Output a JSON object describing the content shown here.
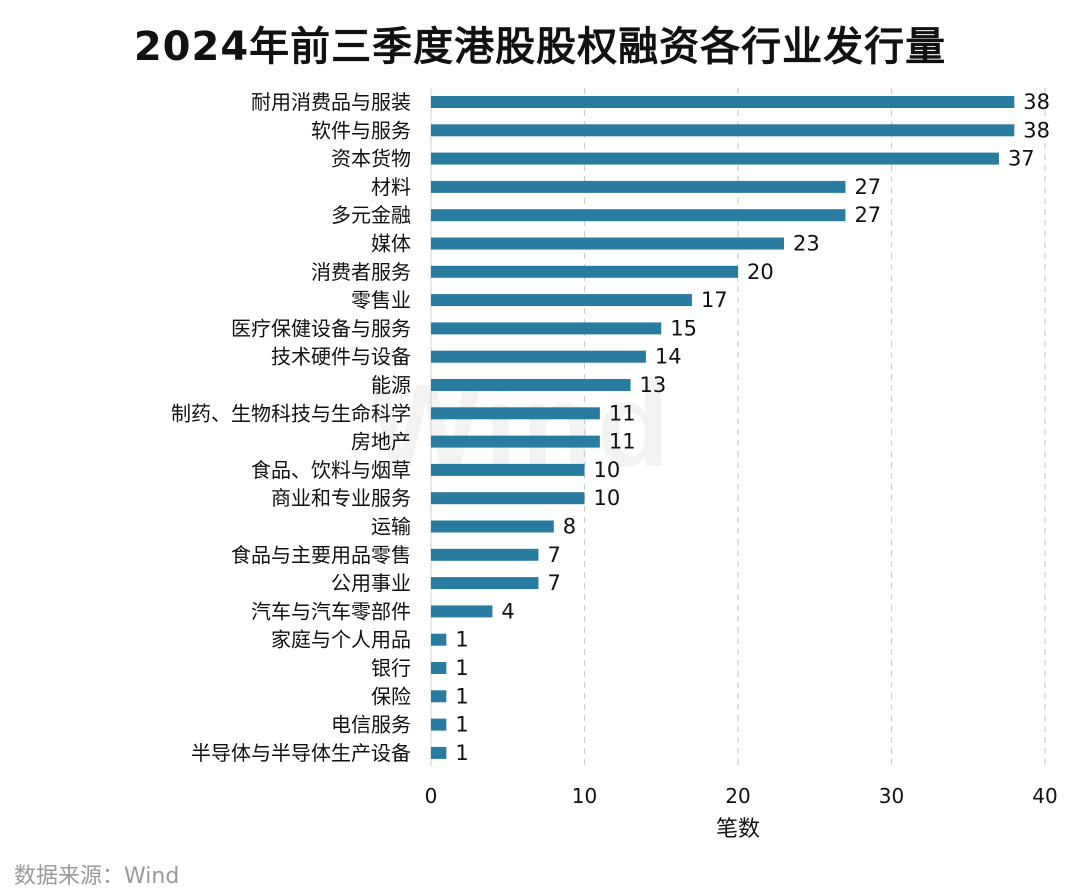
{
  "chart_data": {
    "type": "bar",
    "orientation": "horizontal",
    "title": "2024年前三季度港股股权融资各行业发行量",
    "xlabel": "笔数",
    "ylabel": "",
    "xlim": [
      0,
      40
    ],
    "xticks": [
      0,
      10,
      20,
      30,
      40
    ],
    "grid": "vertical dashed",
    "bar_color": "#2a7ba0",
    "categories": [
      "耐用消费品与服装",
      "软件与服务",
      "资本货物",
      "材料",
      "多元金融",
      "媒体",
      "消费者服务",
      "零售业",
      "医疗保健设备与服务",
      "技术硬件与设备",
      "能源",
      "制药、生物科技与生命科学",
      "房地产",
      "食品、饮料与烟草",
      "商业和专业服务",
      "运输",
      "食品与主要用品零售",
      "公用事业",
      "汽车与汽车零部件",
      "家庭与个人用品",
      "银行",
      "保险",
      "电信服务",
      "半导体与半导体生产设备"
    ],
    "values": [
      38,
      38,
      37,
      27,
      27,
      23,
      20,
      17,
      15,
      14,
      13,
      11,
      11,
      10,
      10,
      8,
      7,
      7,
      4,
      1,
      1,
      1,
      1,
      1
    ]
  },
  "watermark": "Wind",
  "source": "数据来源：Wind"
}
